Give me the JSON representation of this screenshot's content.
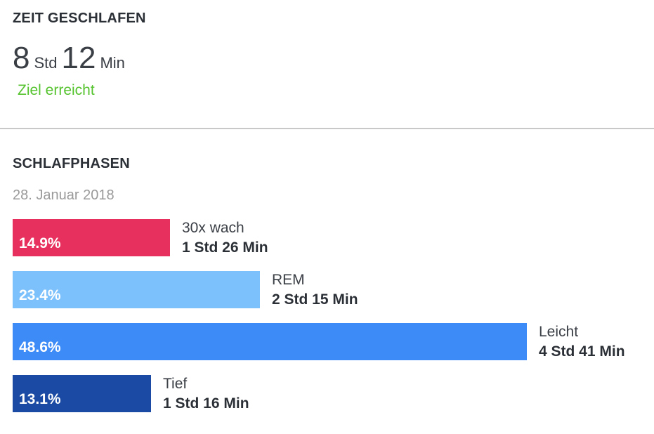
{
  "time_asleep": {
    "title": "ZEIT GESCHLAFEN",
    "hours": "8",
    "hours_unit": "Std",
    "minutes": "12",
    "minutes_unit": "Min",
    "goal_status": "Ziel erreicht",
    "goal_color": "#55c32e"
  },
  "sleep_stages": {
    "title": "SCHLAFPHASEN",
    "date": "28. Januar 2018"
  },
  "chart_data": {
    "type": "bar",
    "orientation": "horizontal",
    "categories": [
      "30x wach",
      "REM",
      "Leicht",
      "Tief"
    ],
    "values": [
      14.9,
      23.4,
      48.6,
      13.1
    ],
    "value_labels": [
      "14.9%",
      "23.4%",
      "48.6%",
      "13.1%"
    ],
    "durations": [
      "1 Std 26 Min",
      "2 Std 15 Min",
      "4 Std 41 Min",
      "1 Std 16 Min"
    ],
    "colors": [
      "#e8305e",
      "#7cc1fb",
      "#3d8bf7",
      "#1a4aa3"
    ],
    "title": "",
    "xlim": [
      0,
      48.6
    ]
  }
}
